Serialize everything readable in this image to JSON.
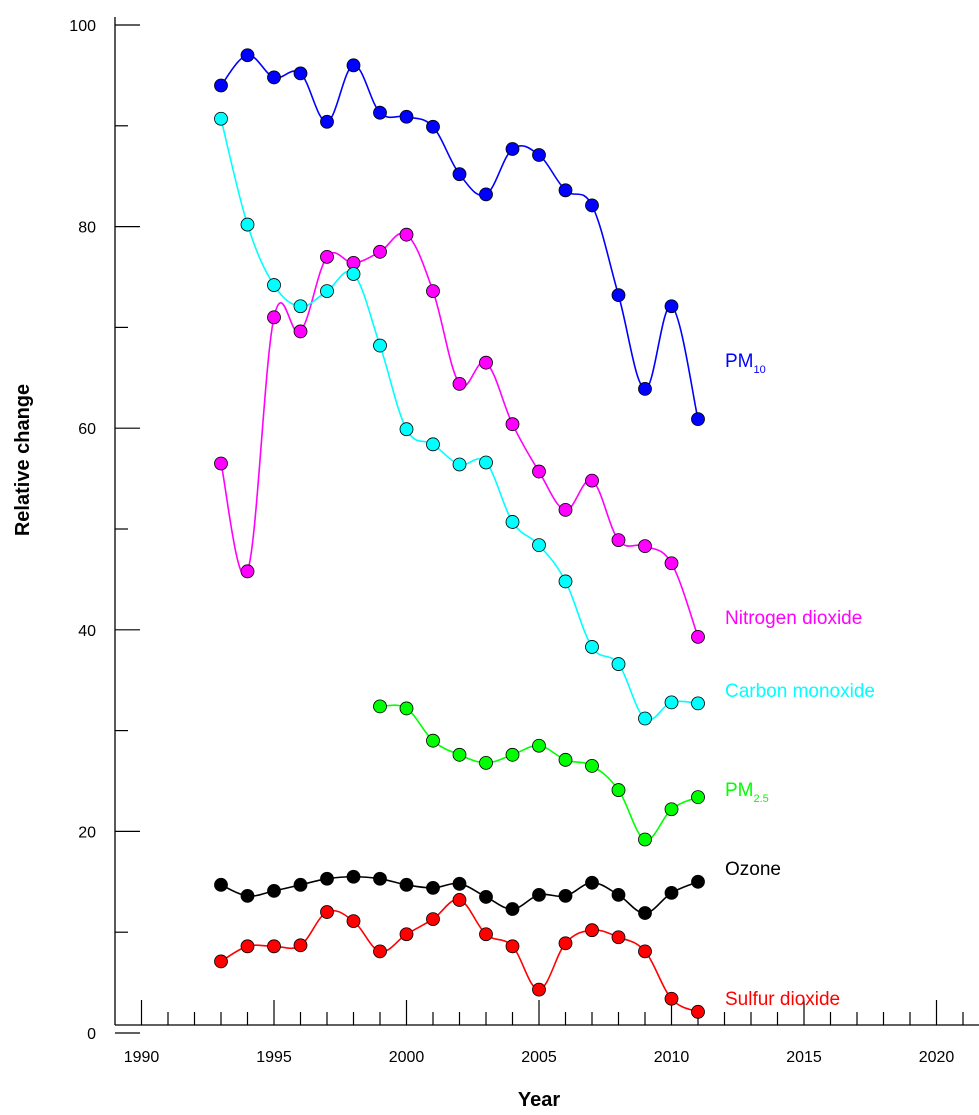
{
  "chart_data": {
    "type": "line",
    "xlabel": "Year",
    "ylabel": "Relative change",
    "xlim": [
      1989,
      2021.6
    ],
    "ylim": [
      0,
      100
    ],
    "x_ticks": [
      1990,
      1995,
      2000,
      2005,
      2010,
      2015,
      2020
    ],
    "y_ticks": [
      0,
      20,
      40,
      60,
      80,
      100
    ],
    "x_tick_labels": [
      "1990",
      "1995",
      "2000",
      "2005",
      "2010",
      "2015",
      "2020"
    ],
    "y_tick_labels": [
      "0",
      "20",
      "40",
      "60",
      "80",
      "100"
    ],
    "grid": false,
    "legend": "inline labels at line ends",
    "series": [
      {
        "name": "PM10",
        "label_main": "PM",
        "label_sub": "10",
        "color": "#0000ff",
        "x": [
          1993,
          1994,
          1995,
          1996,
          1997,
          1998,
          1999,
          2000,
          2001,
          2002,
          2003,
          2004,
          2005,
          2006,
          2007,
          2008,
          2009,
          2010,
          2011
        ],
        "values": [
          94,
          97,
          94.8,
          95.2,
          90.4,
          96,
          91.3,
          90.9,
          89.9,
          85.2,
          83.2,
          87.7,
          87.1,
          83.6,
          82.1,
          73.2,
          63.9,
          72.1,
          60.9
        ]
      },
      {
        "name": "Nitrogen dioxide",
        "color": "#ff00ff",
        "x": [
          1993,
          1994,
          1995,
          1996,
          1997,
          1998,
          1999,
          2000,
          2001,
          2002,
          2003,
          2004,
          2005,
          2006,
          2007,
          2008,
          2009,
          2010,
          2011
        ],
        "values": [
          56.5,
          45.8,
          71,
          69.6,
          77,
          76.4,
          77.5,
          79.2,
          73.6,
          64.4,
          66.5,
          60.4,
          55.7,
          51.9,
          54.8,
          48.9,
          48.3,
          46.6,
          39.3
        ]
      },
      {
        "name": "Carbon monoxide",
        "color": "#00ffff",
        "x": [
          1993,
          1994,
          1995,
          1996,
          1997,
          1998,
          1999,
          2000,
          2001,
          2002,
          2003,
          2004,
          2005,
          2006,
          2007,
          2008,
          2009,
          2010,
          2011
        ],
        "values": [
          90.7,
          80.2,
          74.2,
          72.1,
          73.6,
          75.3,
          68.2,
          59.9,
          58.4,
          56.4,
          56.6,
          50.7,
          48.4,
          44.8,
          38.3,
          36.6,
          31.2,
          32.8,
          32.7
        ]
      },
      {
        "name": "PM2.5",
        "label_main": "PM",
        "label_sub": "2.5",
        "color": "#00ff00",
        "x": [
          1999,
          2000,
          2001,
          2002,
          2003,
          2004,
          2005,
          2006,
          2007,
          2008,
          2009,
          2010,
          2011
        ],
        "values": [
          32.4,
          32.2,
          29,
          27.6,
          26.8,
          27.6,
          28.5,
          27.1,
          26.5,
          24.1,
          19.2,
          22.2,
          23.4
        ]
      },
      {
        "name": "Ozone",
        "color": "#000000",
        "x": [
          1993,
          1994,
          1995,
          1996,
          1997,
          1998,
          1999,
          2000,
          2001,
          2002,
          2003,
          2004,
          2005,
          2006,
          2007,
          2008,
          2009,
          2010,
          2011
        ],
        "values": [
          14.7,
          13.6,
          14.1,
          14.7,
          15.3,
          15.5,
          15.3,
          14.7,
          14.4,
          14.8,
          13.5,
          12.3,
          13.7,
          13.6,
          14.9,
          13.7,
          11.9,
          13.9,
          15
        ]
      },
      {
        "name": "Sulfur dioxide",
        "color": "#ff0000",
        "x": [
          1993,
          1994,
          1995,
          1996,
          1997,
          1998,
          1999,
          2000,
          2001,
          2002,
          2003,
          2004,
          2005,
          2006,
          2007,
          2008,
          2009,
          2010,
          2011
        ],
        "values": [
          7.1,
          8.6,
          8.6,
          8.7,
          12,
          11.1,
          8.1,
          9.8,
          11.3,
          13.2,
          9.8,
          8.6,
          4.3,
          8.9,
          10.2,
          9.5,
          8.1,
          3.4,
          2.1
        ]
      }
    ]
  }
}
